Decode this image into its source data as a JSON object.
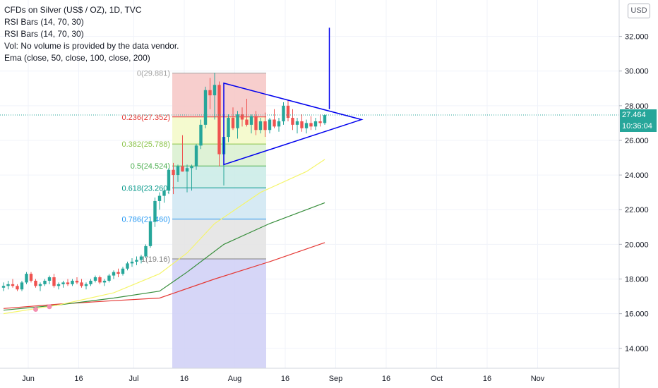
{
  "legend": {
    "title": "CFDs on Silver (US$ / OZ), 1D, TVC",
    "indicators": [
      "RSI Bars (14, 70, 30)",
      "RSI Bars (14, 70, 30)",
      "Vol: No volume is provided by the data vendor.",
      "Ema (close, 50, close, 100, close, 200)"
    ]
  },
  "currency": "USD",
  "last_price": "27.464",
  "countdown": "10:36:04",
  "colors": {
    "up": "#26a69a",
    "down": "#ef5350",
    "ema50": "#f5f56a",
    "ema100": "#388e3c",
    "ema200": "#e53935",
    "triangle": "#0000ee",
    "price_line": "#26a69a"
  },
  "chart_data": {
    "type": "candlestick",
    "x_axis": {
      "ticks": [
        "Jun",
        "16",
        "Jul",
        "16",
        "Aug",
        "16",
        "Sep",
        "16",
        "Oct",
        "16",
        "Nov"
      ],
      "x_index": [
        0,
        11,
        23,
        34,
        45,
        56,
        67,
        78,
        89,
        100,
        111
      ]
    },
    "y_axis": {
      "ticks": [
        "14.000",
        "16.000",
        "18.000",
        "20.000",
        "22.000",
        "24.000",
        "26.000",
        "28.000",
        "30.000",
        "32.000"
      ],
      "ylim": [
        12.85,
        34.1
      ],
      "side": "right"
    },
    "candles": [
      [
        17.5,
        17.8,
        17.3,
        17.6
      ],
      [
        17.6,
        17.9,
        17.4,
        17.7
      ],
      [
        17.7,
        18.0,
        17.5,
        17.6
      ],
      [
        17.6,
        17.7,
        17.3,
        17.4
      ],
      [
        17.4,
        17.9,
        17.3,
        17.8
      ],
      [
        17.8,
        18.4,
        17.7,
        18.3
      ],
      [
        18.3,
        18.4,
        17.8,
        17.9
      ],
      [
        17.9,
        18.0,
        17.5,
        17.6
      ],
      [
        17.6,
        17.8,
        17.3,
        17.7
      ],
      [
        17.7,
        18.0,
        17.6,
        17.9
      ],
      [
        17.9,
        18.2,
        17.7,
        18.1
      ],
      [
        18.1,
        18.3,
        17.5,
        17.6
      ],
      [
        17.6,
        17.8,
        17.4,
        17.7
      ],
      [
        17.7,
        17.9,
        17.5,
        17.8
      ],
      [
        17.8,
        18.0,
        17.6,
        17.7
      ],
      [
        17.7,
        18.0,
        17.6,
        17.9
      ],
      [
        17.9,
        18.1,
        17.7,
        17.8
      ],
      [
        17.8,
        18.0,
        17.5,
        17.6
      ],
      [
        17.6,
        17.8,
        17.4,
        17.7
      ],
      [
        17.7,
        18.0,
        17.6,
        17.9
      ],
      [
        17.9,
        18.2,
        17.8,
        18.1
      ],
      [
        18.1,
        18.2,
        17.7,
        17.8
      ],
      [
        17.8,
        18.0,
        17.6,
        17.9
      ],
      [
        17.9,
        18.3,
        17.8,
        18.2
      ],
      [
        18.2,
        18.5,
        18.0,
        18.4
      ],
      [
        18.4,
        18.6,
        18.1,
        18.3
      ],
      [
        18.3,
        18.7,
        18.2,
        18.6
      ],
      [
        18.6,
        19.0,
        18.5,
        18.9
      ],
      [
        18.9,
        19.2,
        18.7,
        19.0
      ],
      [
        19.0,
        19.3,
        18.8,
        19.1
      ],
      [
        19.1,
        19.4,
        18.9,
        19.3
      ],
      [
        19.3,
        20.0,
        19.2,
        19.9
      ],
      [
        19.9,
        21.5,
        19.8,
        21.3
      ],
      [
        21.3,
        22.7,
        21.0,
        22.5
      ],
      [
        22.5,
        23.0,
        22.0,
        22.8
      ],
      [
        22.8,
        23.2,
        22.4,
        23.1
      ],
      [
        23.1,
        24.4,
        22.9,
        24.3
      ],
      [
        24.3,
        24.7,
        22.9,
        24.0
      ],
      [
        24.0,
        24.6,
        23.6,
        24.5
      ],
      [
        24.5,
        26.3,
        24.2,
        24.2
      ],
      [
        24.2,
        24.6,
        23.0,
        24.4
      ],
      [
        24.4,
        24.6,
        23.1,
        24.5
      ],
      [
        24.5,
        25.8,
        24.3,
        25.7
      ],
      [
        25.7,
        27.2,
        25.5,
        26.9
      ],
      [
        26.9,
        29.1,
        26.7,
        28.9
      ],
      [
        28.9,
        29.6,
        27.8,
        28.6
      ],
      [
        28.6,
        29.9,
        27.2,
        29.2
      ],
      [
        29.2,
        29.4,
        24.5,
        25.2
      ],
      [
        25.2,
        26.9,
        23.4,
        26.2
      ],
      [
        26.2,
        27.5,
        25.9,
        27.3
      ],
      [
        27.3,
        27.9,
        26.6,
        26.7
      ],
      [
        26.7,
        27.7,
        26.1,
        27.5
      ],
      [
        27.5,
        27.9,
        26.8,
        27.2
      ],
      [
        27.2,
        28.4,
        26.8,
        26.9
      ],
      [
        26.9,
        27.5,
        26.4,
        27.4
      ],
      [
        27.4,
        27.7,
        26.3,
        26.6
      ],
      [
        26.6,
        27.3,
        26.4,
        27.1
      ],
      [
        27.1,
        27.6,
        26.2,
        26.6
      ],
      [
        26.6,
        27.3,
        26.4,
        27.2
      ],
      [
        27.2,
        27.8,
        26.7,
        26.8
      ],
      [
        26.8,
        27.3,
        26.5,
        27.1
      ],
      [
        27.1,
        28.2,
        26.9,
        28.0
      ],
      [
        28.0,
        28.3,
        27.1,
        27.3
      ],
      [
        27.3,
        27.8,
        26.6,
        26.9
      ],
      [
        26.9,
        27.3,
        26.4,
        27.1
      ],
      [
        27.1,
        27.5,
        26.5,
        26.7
      ],
      [
        26.7,
        27.2,
        26.4,
        27.0
      ],
      [
        27.0,
        27.4,
        26.6,
        26.8
      ],
      [
        26.8,
        27.3,
        26.6,
        27.1
      ],
      [
        27.1,
        27.5,
        26.8,
        27.0
      ],
      [
        27.0,
        27.5,
        26.9,
        27.46
      ]
    ],
    "candle_start_index": 0,
    "ema50": [
      [
        0,
        16.0
      ],
      [
        12,
        16.5
      ],
      [
        24,
        17.2
      ],
      [
        34,
        18.3
      ],
      [
        40,
        19.5
      ],
      [
        46,
        21.2
      ],
      [
        56,
        23.0
      ],
      [
        66,
        24.2
      ],
      [
        70,
        24.9
      ]
    ],
    "ema100": [
      [
        0,
        16.2
      ],
      [
        12,
        16.5
      ],
      [
        24,
        16.9
      ],
      [
        34,
        17.3
      ],
      [
        40,
        18.4
      ],
      [
        48,
        20.0
      ],
      [
        58,
        21.2
      ],
      [
        70,
        22.4
      ]
    ],
    "ema200": [
      [
        0,
        16.3
      ],
      [
        12,
        16.55
      ],
      [
        24,
        16.75
      ],
      [
        34,
        16.9
      ],
      [
        46,
        18.0
      ],
      [
        58,
        19.0
      ],
      [
        70,
        20.1
      ]
    ],
    "highlight_markers": [
      [
        7,
        16.25
      ],
      [
        10,
        16.4
      ]
    ],
    "fibonacci": {
      "x_range": [
        34,
        48
      ],
      "levels": [
        {
          "ratio": "0",
          "price": 29.881,
          "label": "0(29.881)",
          "fill": "#f6c6c4",
          "line": "#a0a0a0"
        },
        {
          "ratio": "0.236",
          "price": 27.352,
          "label": "0.236(27.352)",
          "fill": "#f3f9c7",
          "line": "#e53935"
        },
        {
          "ratio": "0.382",
          "price": 25.788,
          "label": "0.382(25.788)",
          "fill": "#d8f0cf",
          "line": "#8bc34a"
        },
        {
          "ratio": "0.5",
          "price": 24.524,
          "label": "0.5(24.524)",
          "fill": "#c9ebe6",
          "line": "#4caf50"
        },
        {
          "ratio": "0.618",
          "price": 23.26,
          "label": "0.618(23.260)",
          "fill": "#cfe6f2",
          "line": "#009688"
        },
        {
          "ratio": "0.786",
          "price": 21.46,
          "label": "0.786(21.460)",
          "fill": "#e3e3e3",
          "line": "#2196f3"
        },
        {
          "ratio": "1",
          "price": 19.16,
          "label": "1(19.16)",
          "fill": "#cfcff6",
          "line": "#808080"
        }
      ],
      "extension_bottom": 12.85
    },
    "triangle": [
      [
        48,
        29.3
      ],
      [
        78,
        27.2
      ],
      [
        48,
        24.6
      ]
    ],
    "vertical_line": {
      "x": 71,
      "from": 27.8,
      "to": 32.5
    },
    "last_price": 27.464,
    "max_x_index": 124
  }
}
